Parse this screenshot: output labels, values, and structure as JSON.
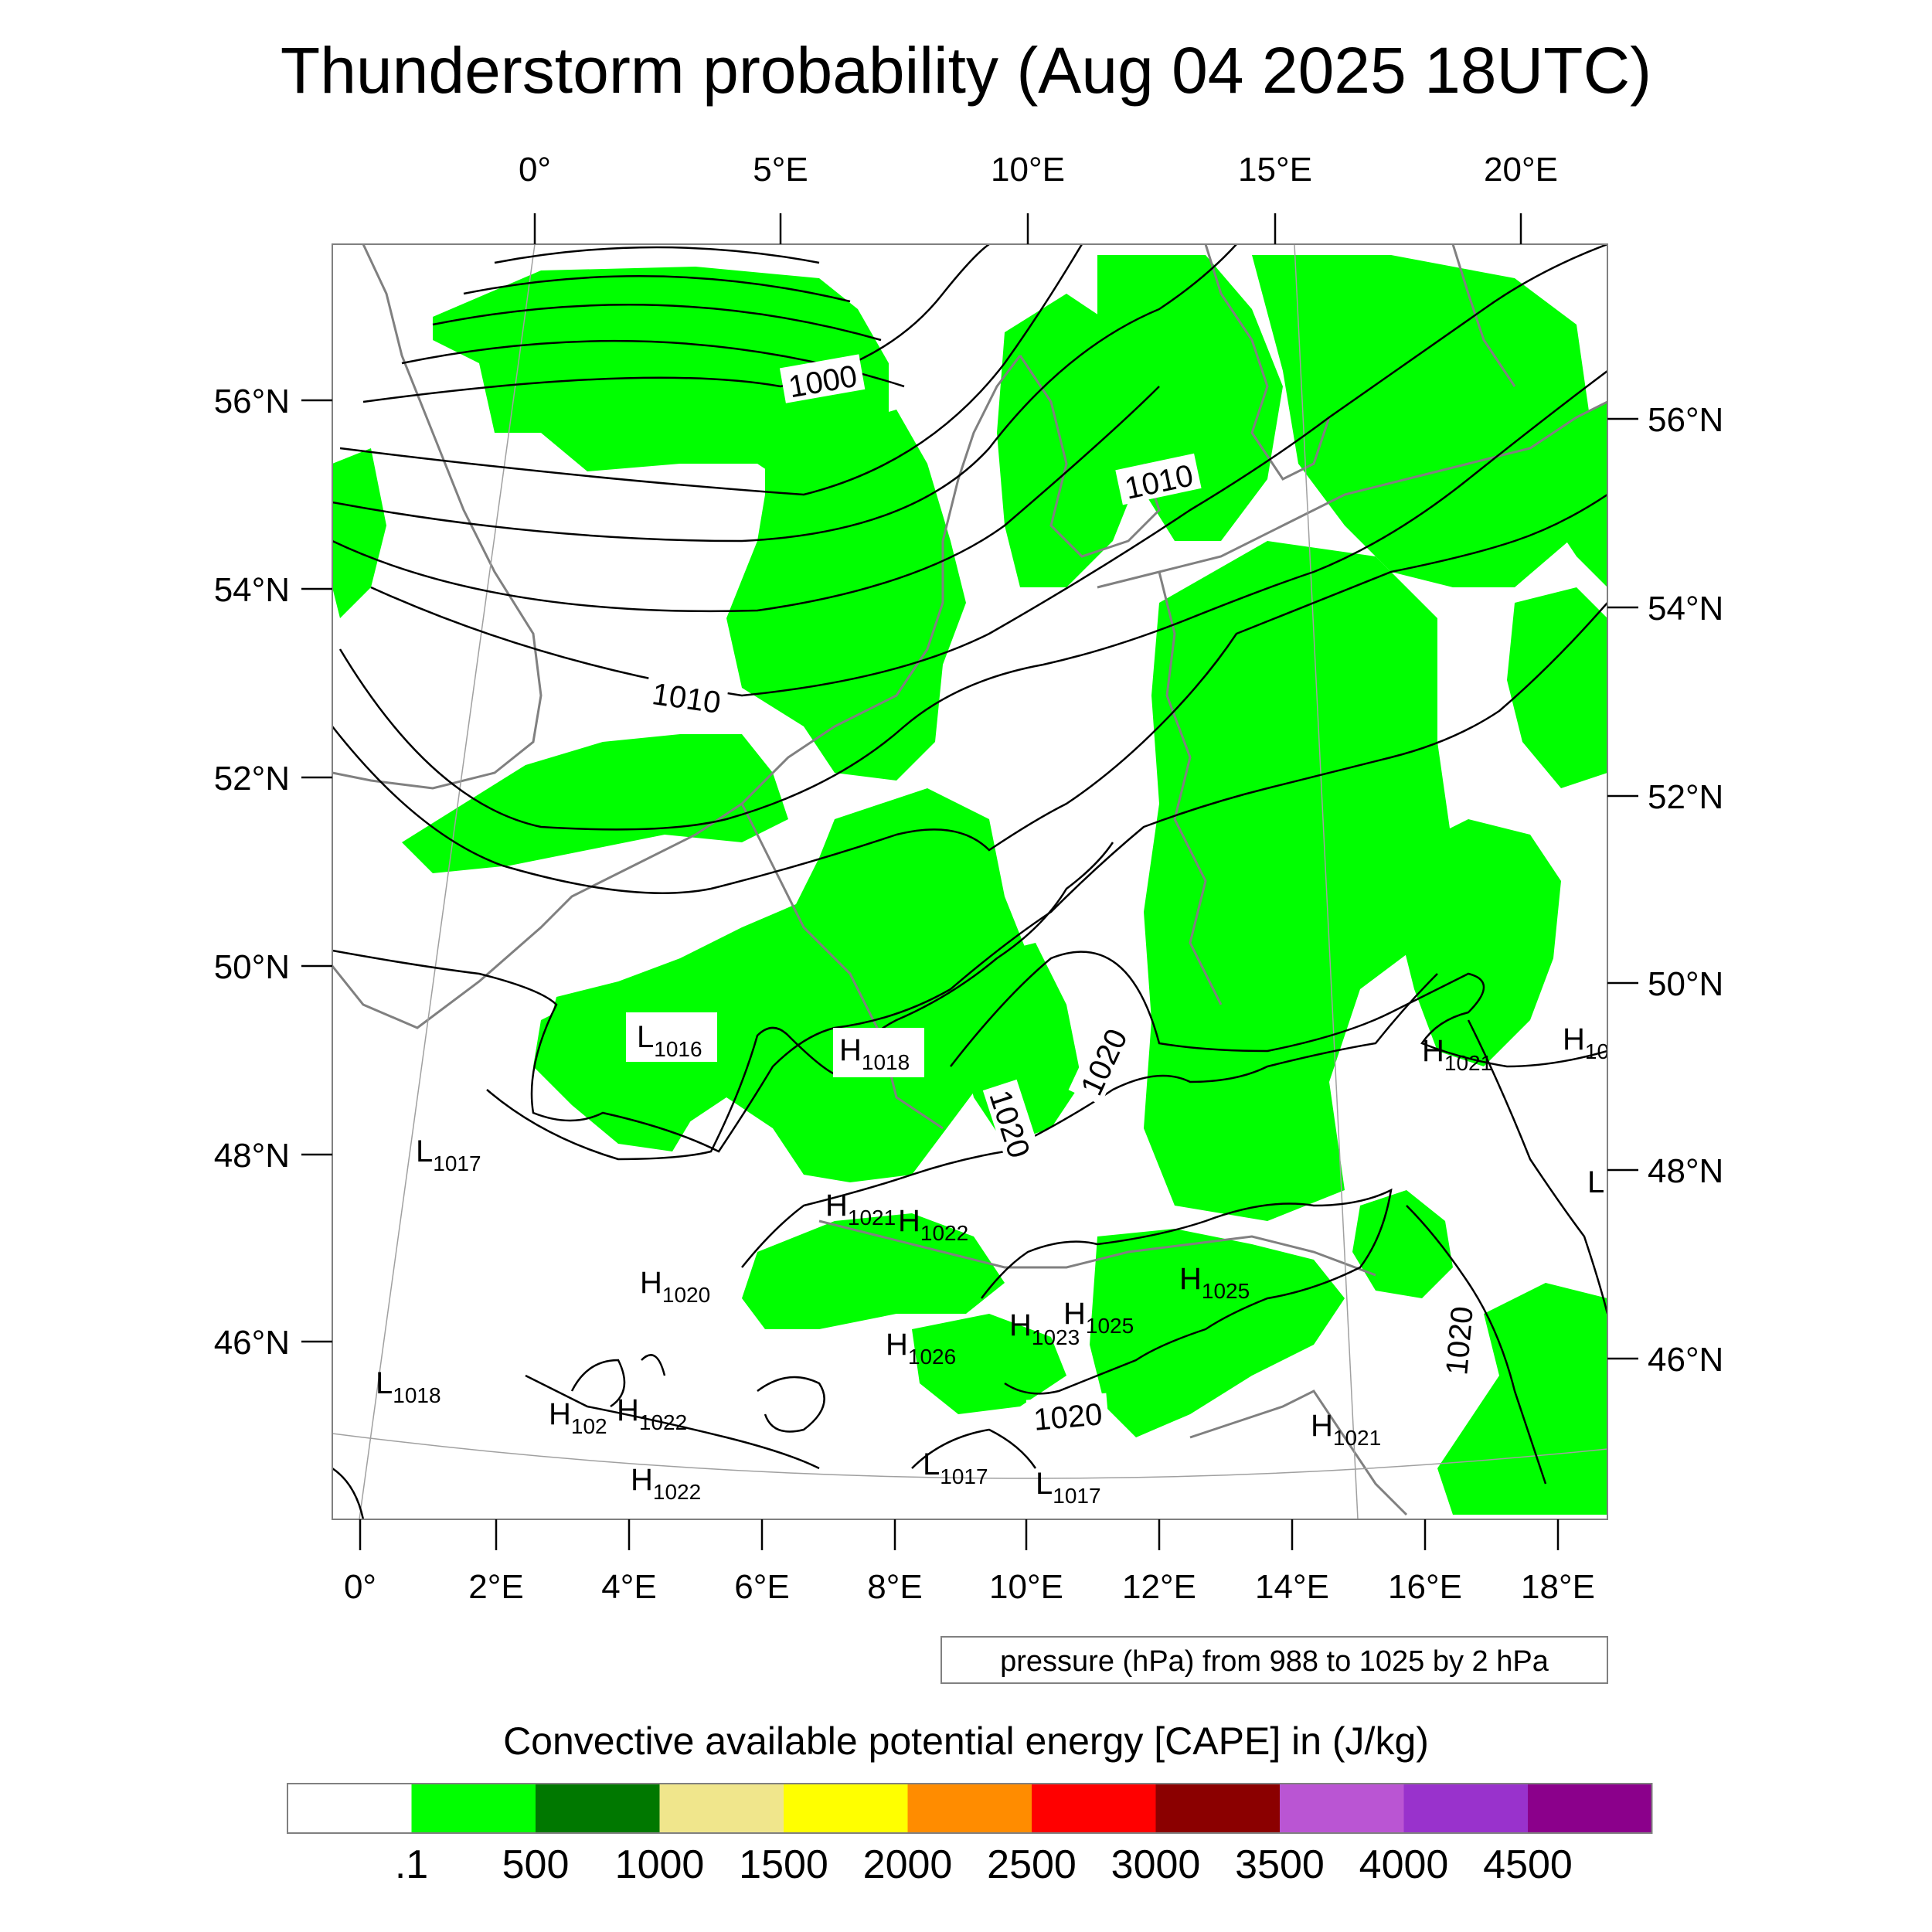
{
  "title": "Thunderstorm probability (Aug 04 2025 18UTC)",
  "map": {
    "fill_color": "#00ff00",
    "top_lon_labels": [
      "0°",
      "5°E",
      "10°E",
      "15°E",
      "20°E"
    ],
    "bottom_lon_labels": [
      "0°",
      "2°E",
      "4°E",
      "6°E",
      "8°E",
      "10°E",
      "12°E",
      "14°E",
      "16°E",
      "18°E"
    ],
    "left_lat_labels": [
      "56°N",
      "54°N",
      "52°N",
      "50°N",
      "48°N",
      "46°N"
    ],
    "right_lat_labels": [
      "56°N",
      "54°N",
      "52°N",
      "50°N",
      "48°N",
      "46°N"
    ],
    "isobar_labels": [
      "1000",
      "1010",
      "1010",
      "1020",
      "1020",
      "1020",
      "1020"
    ],
    "pressure_centers": [
      {
        "kind": "L",
        "value": "1016"
      },
      {
        "kind": "H",
        "value": "1018"
      },
      {
        "kind": "L",
        "value": "1017"
      },
      {
        "kind": "H",
        "value": "1021"
      },
      {
        "kind": "H",
        "value": "1022"
      },
      {
        "kind": "H",
        "value": "1020"
      },
      {
        "kind": "H",
        "value": "1025"
      },
      {
        "kind": "H",
        "value": "1025"
      },
      {
        "kind": "H",
        "value": "1023"
      },
      {
        "kind": "H",
        "value": "1026"
      },
      {
        "kind": "L",
        "value": "1018"
      },
      {
        "kind": "H",
        "value": "102"
      },
      {
        "kind": "H",
        "value": "1022"
      },
      {
        "kind": "H",
        "value": "1022"
      },
      {
        "kind": "L",
        "value": "1017"
      },
      {
        "kind": "L",
        "value": "1017"
      },
      {
        "kind": "H",
        "value": "1021"
      },
      {
        "kind": "H",
        "value": "1021"
      },
      {
        "kind": "H",
        "value": "10"
      },
      {
        "kind": "L",
        "value": ""
      }
    ]
  },
  "contour_note": "pressure (hPa) from 988 to 1025 by 2 hPa",
  "colorbar": {
    "title": "Convective available potential energy [CAPE] in (J/kg)",
    "colors": [
      "#ffffff",
      "#00ff00",
      "#007800",
      "#f0e68c",
      "#ffff00",
      "#ff8c00",
      "#ff0000",
      "#8b0000",
      "#ba55d3",
      "#9932cc",
      "#8b008b"
    ],
    "labels": [
      ".1",
      "500",
      "1000",
      "1500",
      "2000",
      "2500",
      "3000",
      "3500",
      "4000",
      "4500"
    ]
  }
}
